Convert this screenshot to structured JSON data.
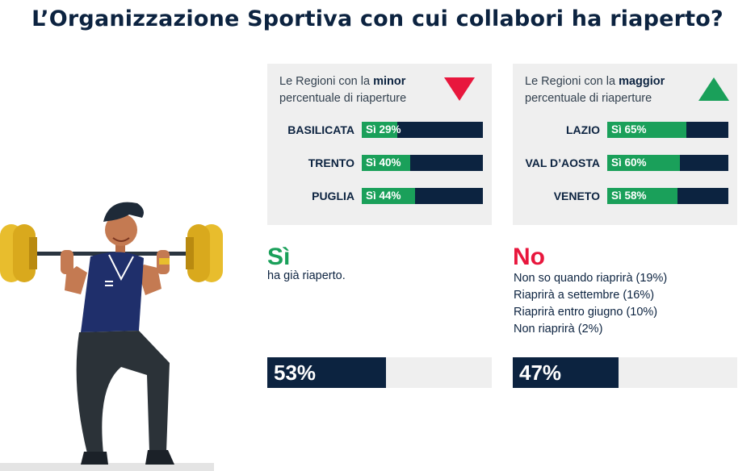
{
  "title": "L’Organizzazione Sportiva con cui collabori ha riaperto?",
  "colors": {
    "navy": "#0c2340",
    "green": "#1aa05a",
    "red": "#e8173d",
    "panel": "#efefef"
  },
  "panels": {
    "minor": {
      "caption_pre": "Le Regioni con la ",
      "caption_bold": "minor",
      "caption_post": "percentuale di riaperture",
      "icon": "triangle-down-icon"
    },
    "maggior": {
      "caption_pre": "Le Regioni con la ",
      "caption_bold": "maggior",
      "caption_post": "percentuale di riaperture",
      "icon": "triangle-up-icon"
    }
  },
  "summary": {
    "yes": {
      "heading": "Sì",
      "sub": "ha già riaperto.",
      "total_label": "53%",
      "total_value": 53
    },
    "no": {
      "heading": "No",
      "reasons": [
        "Non so quando riaprirà (19%)",
        "Riaprirà a settembre (16%)",
        "Riaprirà entro giugno (10%)",
        "Non riaprirà (2%)"
      ],
      "total_label": "47%",
      "total_value": 47
    }
  },
  "chart_data": [
    {
      "type": "bar",
      "categories": [
        "BASILICATA",
        "TRENTO",
        "PUGLIA"
      ],
      "values": [
        29,
        40,
        44
      ],
      "labels": [
        "Sì 29%",
        "Sì 40%",
        "Sì 44%"
      ],
      "ylim": [
        0,
        100
      ]
    },
    {
      "type": "bar",
      "categories": [
        "LAZIO",
        "VAL D’AOSTA",
        "VENETO"
      ],
      "values": [
        65,
        60,
        58
      ],
      "labels": [
        "Sì 65%",
        "Sì 60%",
        "Sì 58%"
      ],
      "ylim": [
        0,
        100
      ]
    },
    {
      "type": "bar",
      "categories": [
        "Sì",
        "No"
      ],
      "values": [
        53,
        47
      ],
      "labels": [
        "53%",
        "47%"
      ],
      "ylim": [
        0,
        100
      ]
    }
  ]
}
